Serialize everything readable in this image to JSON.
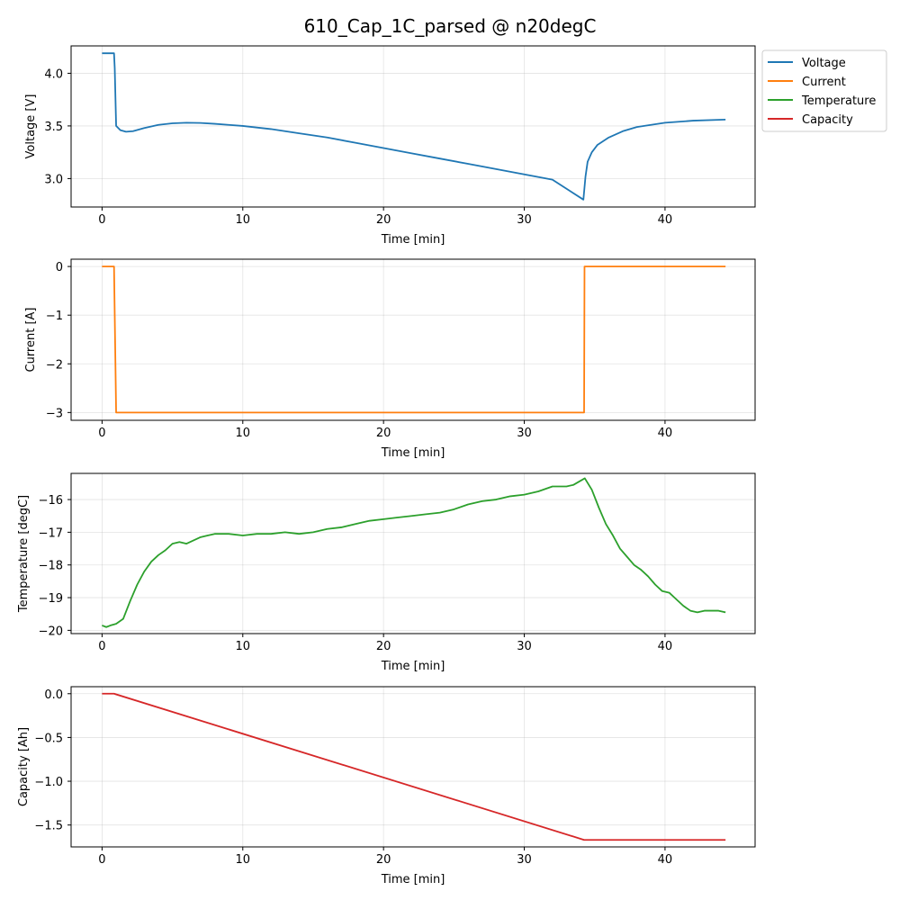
{
  "title": "610_Cap_1C_parsed @ n20degC",
  "legend": {
    "placement": "outside-top-right",
    "entries": [
      {
        "label": "Voltage",
        "color": "#1f77b4"
      },
      {
        "label": "Current",
        "color": "#ff7f0e"
      },
      {
        "label": "Temperature",
        "color": "#2ca02c"
      },
      {
        "label": "Capacity",
        "color": "#d62728"
      }
    ]
  },
  "chart_data": [
    {
      "type": "line",
      "name": "Voltage",
      "color": "#1f77b4",
      "xlabel": "Time [min]",
      "ylabel": "Voltage [V]",
      "xlim": [
        -2.2,
        46.4
      ],
      "ylim": [
        2.73,
        4.26
      ],
      "xticks": [
        0,
        10,
        20,
        30,
        40
      ],
      "yticks": [
        3.0,
        3.5,
        4.0
      ],
      "ytick_labels": [
        "3.0",
        "3.5",
        "4.0"
      ],
      "grid": true,
      "x": [
        0,
        0.85,
        0.9,
        1.0,
        1.3,
        1.7,
        2.2,
        3,
        4,
        5,
        6,
        7,
        8,
        9,
        10,
        12,
        14,
        16,
        18,
        20,
        22,
        24,
        26,
        28,
        30,
        32,
        34.2,
        34.35,
        34.5,
        34.8,
        35.2,
        36,
        37,
        38,
        40,
        42,
        44.3
      ],
      "y": [
        4.19,
        4.19,
        4.05,
        3.5,
        3.46,
        3.445,
        3.45,
        3.48,
        3.51,
        3.525,
        3.53,
        3.528,
        3.52,
        3.51,
        3.5,
        3.47,
        3.43,
        3.39,
        3.34,
        3.29,
        3.24,
        3.19,
        3.14,
        3.09,
        3.04,
        2.99,
        2.8,
        3.02,
        3.16,
        3.25,
        3.32,
        3.39,
        3.45,
        3.49,
        3.53,
        3.55,
        3.56
      ]
    },
    {
      "type": "line",
      "name": "Current",
      "color": "#ff7f0e",
      "xlabel": "Time [min]",
      "ylabel": "Current [A]",
      "xlim": [
        -2.2,
        46.4
      ],
      "ylim": [
        -3.16,
        0.15
      ],
      "xticks": [
        0,
        10,
        20,
        30,
        40
      ],
      "yticks": [
        0,
        -1,
        -2,
        -3
      ],
      "ytick_labels": [
        "0",
        "−1",
        "−2",
        "−3"
      ],
      "grid": true,
      "x": [
        0,
        0.85,
        1.0,
        34.25,
        34.28,
        44.3
      ],
      "y": [
        0,
        0,
        -3.0,
        -3.0,
        0,
        0
      ]
    },
    {
      "type": "line",
      "name": "Temperature",
      "color": "#2ca02c",
      "xlabel": "Time [min]",
      "ylabel": "Temperature [degC]",
      "xlim": [
        -2.2,
        46.4
      ],
      "ylim": [
        -20.1,
        -15.2
      ],
      "xticks": [
        0,
        10,
        20,
        30,
        40
      ],
      "yticks": [
        -20,
        -19,
        -18,
        -17,
        -16
      ],
      "ytick_labels": [
        "−20",
        "−19",
        "−18",
        "−17",
        "−16"
      ],
      "grid": true,
      "x": [
        0,
        0.3,
        0.6,
        1.0,
        1.5,
        2.0,
        2.5,
        3.0,
        3.5,
        4.0,
        4.5,
        5.0,
        5.5,
        6.0,
        6.5,
        7.0,
        7.5,
        8.0,
        8.5,
        9.0,
        10.0,
        11.0,
        12.0,
        13.0,
        14.0,
        15.0,
        16.0,
        17.0,
        18.0,
        19.0,
        20.0,
        21.0,
        22.0,
        23.0,
        24.0,
        25.0,
        26.0,
        27.0,
        28.0,
        29.0,
        30.0,
        31.0,
        32.0,
        33.0,
        33.5,
        34.3,
        34.8,
        35.3,
        35.8,
        36.3,
        36.8,
        37.3,
        37.8,
        38.3,
        38.8,
        39.3,
        39.8,
        40.3,
        40.8,
        41.3,
        41.8,
        42.3,
        42.8,
        43.3,
        43.8,
        44.3
      ],
      "y": [
        -19.85,
        -19.9,
        -19.85,
        -19.8,
        -19.65,
        -19.1,
        -18.6,
        -18.2,
        -17.9,
        -17.7,
        -17.55,
        -17.35,
        -17.3,
        -17.35,
        -17.25,
        -17.15,
        -17.1,
        -17.05,
        -17.05,
        -17.05,
        -17.1,
        -17.05,
        -17.05,
        -17.0,
        -17.05,
        -17.0,
        -16.9,
        -16.85,
        -16.75,
        -16.65,
        -16.6,
        -16.55,
        -16.5,
        -16.45,
        -16.4,
        -16.3,
        -16.15,
        -16.05,
        -16.0,
        -15.9,
        -15.85,
        -15.75,
        -15.6,
        -15.6,
        -15.55,
        -15.35,
        -15.7,
        -16.25,
        -16.75,
        -17.1,
        -17.5,
        -17.75,
        -18.0,
        -18.15,
        -18.35,
        -18.6,
        -18.8,
        -18.85,
        -19.05,
        -19.25,
        -19.4,
        -19.45,
        -19.4,
        -19.4,
        -19.4,
        -19.45
      ]
    },
    {
      "type": "line",
      "name": "Capacity",
      "color": "#d62728",
      "xlabel": "Time [min]",
      "ylabel": "Capacity [Ah]",
      "xlim": [
        -2.2,
        46.4
      ],
      "ylim": [
        -1.75,
        0.08
      ],
      "xticks": [
        0,
        10,
        20,
        30,
        40
      ],
      "yticks": [
        0.0,
        -0.5,
        -1.0,
        -1.5
      ],
      "ytick_labels": [
        "0.0",
        "−0.5",
        "−1.0",
        "−1.5"
      ],
      "grid": true,
      "x": [
        0,
        0.85,
        34.25,
        44.3
      ],
      "y": [
        0,
        0,
        -1.67,
        -1.67
      ]
    }
  ]
}
